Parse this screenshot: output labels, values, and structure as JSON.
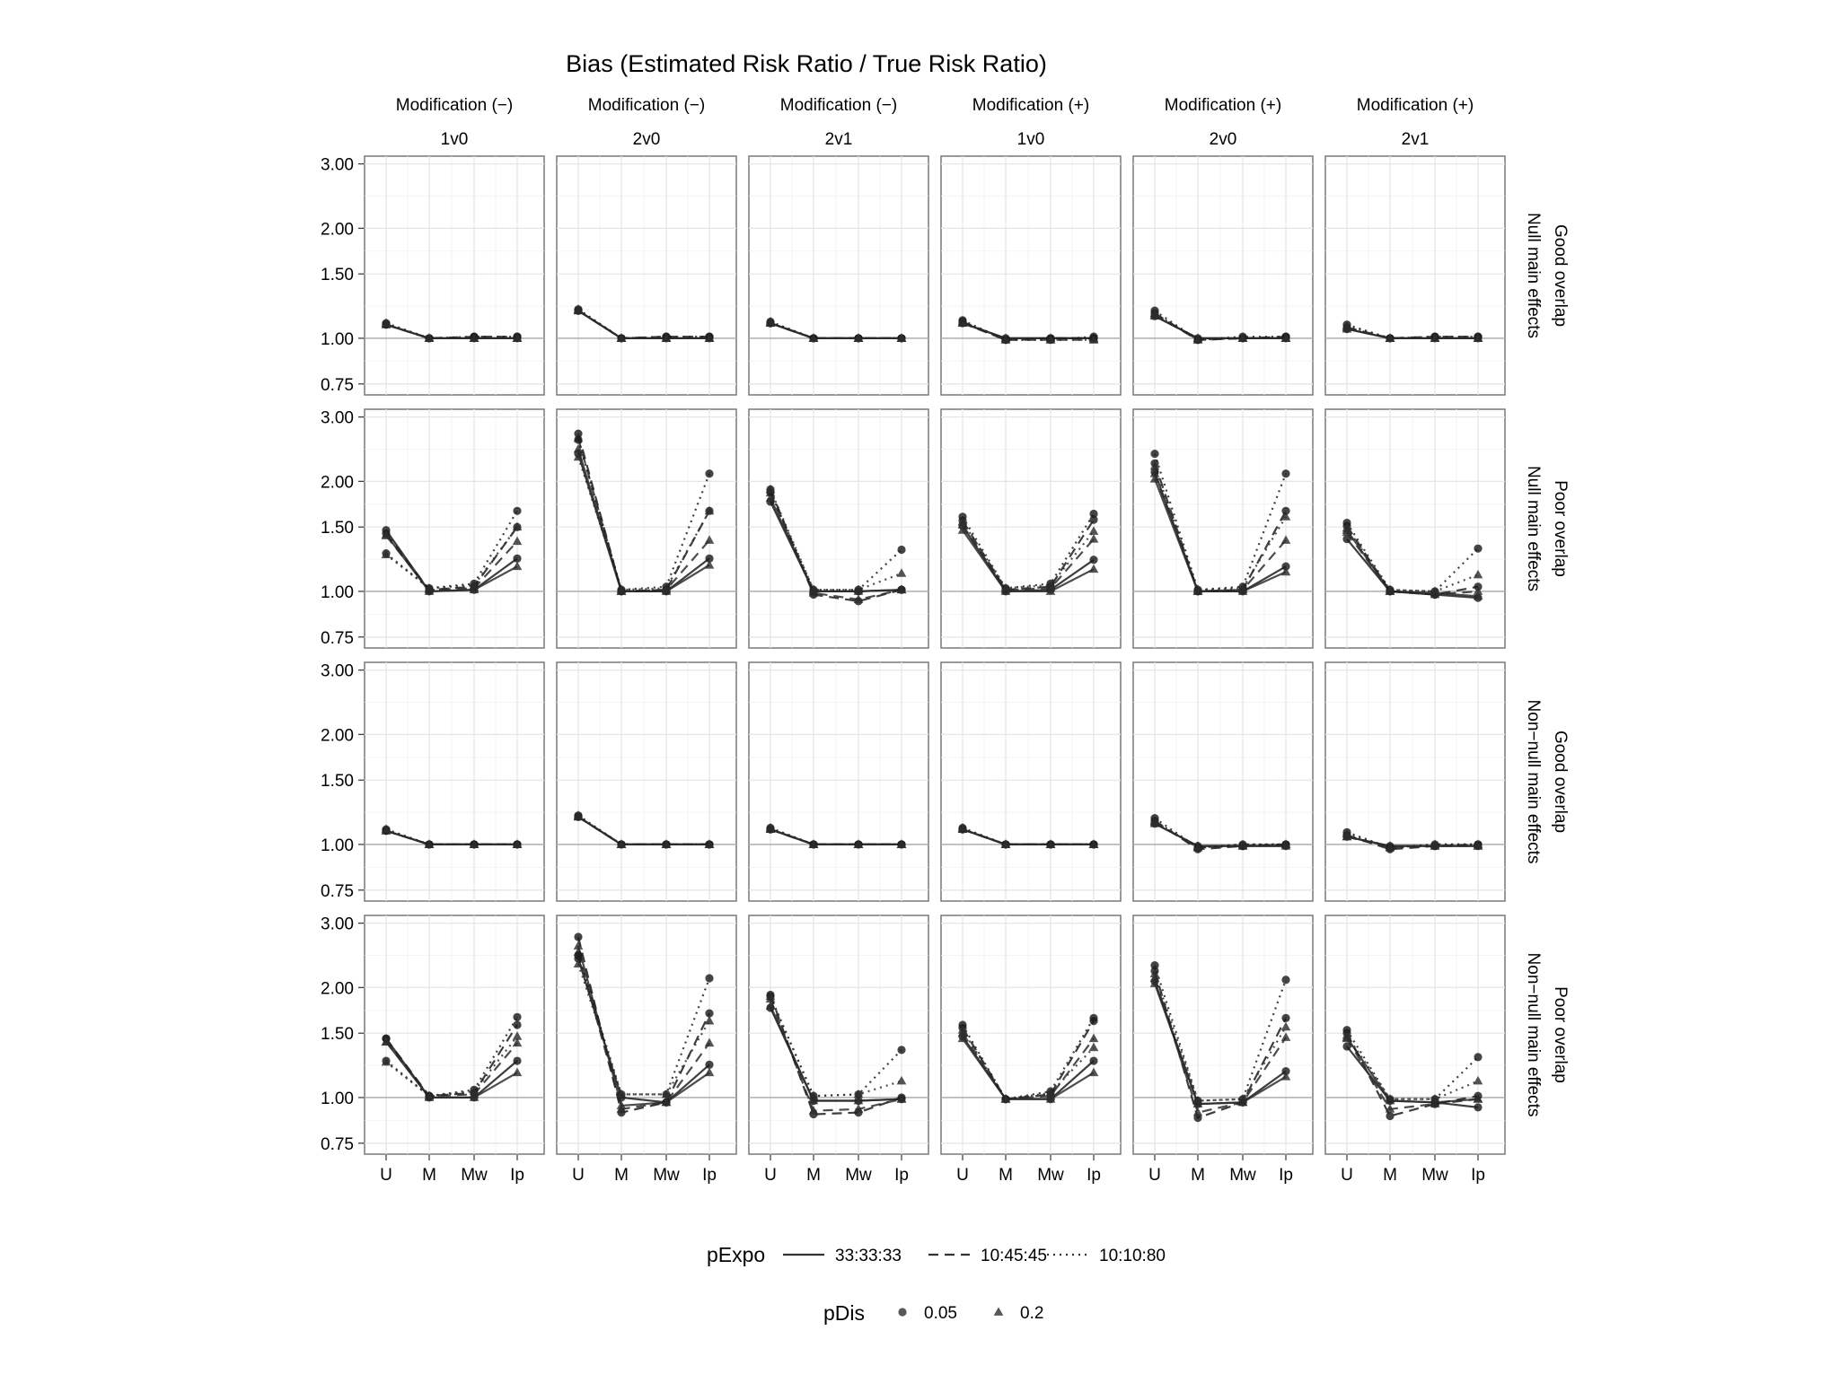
{
  "chart_data": {
    "type": "line",
    "title": "Bias (Estimated Risk Ratio / True Risk Ratio)",
    "x_categories": [
      "U",
      "M",
      "Mw",
      "Ip"
    ],
    "y_ticks": [
      0.75,
      1.0,
      1.5,
      2.0,
      3.0
    ],
    "y_tick_labels": [
      "0.75",
      "1.00",
      "1.50",
      "2.00",
      "3.00"
    ],
    "y_scale": "log",
    "ylim": [
      0.7,
      3.15
    ],
    "reference_line": 1.0,
    "column_facets": [
      {
        "line1": "Modification (−)",
        "line2": "1v0"
      },
      {
        "line1": "Modification (−)",
        "line2": "2v0"
      },
      {
        "line1": "Modification (−)",
        "line2": "2v1"
      },
      {
        "line1": "Modification (+)",
        "line2": "1v0"
      },
      {
        "line1": "Modification (+)",
        "line2": "2v0"
      },
      {
        "line1": "Modification (+)",
        "line2": "2v1"
      }
    ],
    "row_facets": [
      {
        "line1": "Good overlap",
        "line2": "Null main effects"
      },
      {
        "line1": "Poor overlap",
        "line2": "Null main effects"
      },
      {
        "line1": "Good overlap",
        "line2": "Non−null main effects"
      },
      {
        "line1": "Poor overlap",
        "line2": "Non−null main effects"
      }
    ],
    "legend": {
      "pExpo": {
        "title": "pExpo",
        "items": [
          {
            "label": "33:33:33",
            "dash": "solid"
          },
          {
            "label": "10:45:45",
            "dash": "dashed"
          },
          {
            "label": "10:10:80",
            "dash": "dotted"
          }
        ]
      },
      "pDis": {
        "title": "pDis",
        "items": [
          {
            "label": "0.05",
            "shape": "circle"
          },
          {
            "label": "0.2",
            "shape": "triangle"
          }
        ]
      }
    },
    "series_keys": [
      {
        "pExpo": "33:33:33",
        "pDis": "0.05"
      },
      {
        "pExpo": "33:33:33",
        "pDis": "0.2"
      },
      {
        "pExpo": "10:45:45",
        "pDis": "0.05"
      },
      {
        "pExpo": "10:45:45",
        "pDis": "0.2"
      },
      {
        "pExpo": "10:10:80",
        "pDis": "0.05"
      },
      {
        "pExpo": "10:10:80",
        "pDis": "0.2"
      }
    ],
    "panels": [
      [
        [
          [
            1.09,
            1.0,
            1.0,
            1.0
          ],
          [
            1.09,
            1.0,
            1.0,
            1.0
          ],
          [
            1.09,
            1.0,
            1.01,
            1.01
          ],
          [
            1.09,
            1.0,
            1.0,
            1.0
          ],
          [
            1.1,
            1.0,
            1.01,
            1.01
          ],
          [
            1.1,
            1.0,
            1.0,
            1.0
          ]
        ],
        [
          [
            1.19,
            1.0,
            1.0,
            1.0
          ],
          [
            1.19,
            1.0,
            1.0,
            1.0
          ],
          [
            1.19,
            1.0,
            1.01,
            1.01
          ],
          [
            1.19,
            1.0,
            1.0,
            1.0
          ],
          [
            1.2,
            1.0,
            1.01,
            1.01
          ],
          [
            1.2,
            1.0,
            1.0,
            1.0
          ]
        ],
        [
          [
            1.1,
            1.0,
            1.0,
            1.0
          ],
          [
            1.1,
            1.0,
            1.0,
            1.0
          ],
          [
            1.1,
            1.0,
            1.0,
            1.0
          ],
          [
            1.1,
            1.0,
            1.0,
            1.0
          ],
          [
            1.11,
            1.0,
            1.0,
            1.0
          ],
          [
            1.11,
            1.0,
            1.0,
            1.0
          ]
        ],
        [
          [
            1.1,
            1.0,
            1.0,
            1.0
          ],
          [
            1.1,
            1.0,
            1.0,
            1.0
          ],
          [
            1.11,
            0.99,
            1.0,
            1.0
          ],
          [
            1.1,
            0.99,
            0.99,
            0.99
          ],
          [
            1.12,
            0.99,
            0.99,
            1.01
          ],
          [
            1.11,
            0.99,
            0.99,
            0.99
          ]
        ],
        [
          [
            1.15,
            1.0,
            1.0,
            1.0
          ],
          [
            1.15,
            1.0,
            1.0,
            1.0
          ],
          [
            1.17,
            0.99,
            1.0,
            1.01
          ],
          [
            1.16,
            0.99,
            1.0,
            1.0
          ],
          [
            1.19,
            0.99,
            1.01,
            1.01
          ],
          [
            1.17,
            0.99,
            1.0,
            1.0
          ]
        ],
        [
          [
            1.06,
            1.0,
            1.0,
            1.0
          ],
          [
            1.06,
            1.0,
            1.0,
            1.0
          ],
          [
            1.07,
            1.0,
            1.01,
            1.01
          ],
          [
            1.07,
            1.0,
            1.0,
            1.0
          ],
          [
            1.09,
            1.0,
            1.01,
            1.01
          ],
          [
            1.08,
            1.0,
            1.0,
            1.0
          ]
        ]
      ],
      [
        [
          [
            1.47,
            1.0,
            1.01,
            1.23
          ],
          [
            1.43,
            1.0,
            1.01,
            1.17
          ],
          [
            1.44,
            1.01,
            1.03,
            1.5
          ],
          [
            1.42,
            1.01,
            1.02,
            1.37
          ],
          [
            1.27,
            1.02,
            1.05,
            1.66
          ],
          [
            1.26,
            1.02,
            1.04,
            1.5
          ]
        ],
        [
          [
            2.38,
            1.0,
            1.0,
            1.23
          ],
          [
            2.45,
            1.0,
            1.0,
            1.18
          ],
          [
            2.7,
            1.0,
            1.01,
            1.66
          ],
          [
            2.62,
            1.0,
            1.01,
            1.38
          ],
          [
            2.6,
            1.01,
            1.03,
            2.1
          ],
          [
            2.33,
            1.01,
            1.02,
            1.66
          ]
        ],
        [
          [
            1.76,
            1.0,
            1.0,
            1.01
          ],
          [
            1.8,
            1.0,
            1.0,
            1.01
          ],
          [
            1.9,
            0.98,
            0.94,
            1.01
          ],
          [
            1.86,
            0.99,
            0.95,
            1.01
          ],
          [
            1.87,
            1.01,
            1.01,
            1.3
          ],
          [
            1.9,
            1.01,
            1.01,
            1.12
          ]
        ],
        [
          [
            1.51,
            1.0,
            1.01,
            1.22
          ],
          [
            1.47,
            1.0,
            1.0,
            1.15
          ],
          [
            1.56,
            1.01,
            1.03,
            1.57
          ],
          [
            1.52,
            1.01,
            1.02,
            1.39
          ],
          [
            1.6,
            1.02,
            1.05,
            1.63
          ],
          [
            1.55,
            1.02,
            1.04,
            1.46
          ]
        ],
        [
          [
            2.12,
            1.0,
            1.0,
            1.17
          ],
          [
            2.03,
            1.0,
            1.0,
            1.13
          ],
          [
            2.24,
            1.0,
            1.01,
            1.66
          ],
          [
            2.1,
            1.0,
            1.01,
            1.38
          ],
          [
            2.38,
            1.01,
            1.03,
            2.1
          ],
          [
            2.2,
            1.01,
            1.02,
            1.6
          ]
        ],
        [
          [
            1.39,
            1.0,
            0.98,
            0.96
          ],
          [
            1.47,
            1.0,
            0.99,
            0.97
          ],
          [
            1.51,
            1.0,
            0.98,
            1.03
          ],
          [
            1.45,
            1.0,
            0.98,
            1.0
          ],
          [
            1.54,
            1.01,
            1.0,
            1.31
          ],
          [
            1.49,
            1.01,
            1.0,
            1.11
          ]
        ]
      ],
      [
        [
          [
            1.09,
            1.0,
            1.0,
            1.0
          ],
          [
            1.09,
            1.0,
            1.0,
            1.0
          ],
          [
            1.09,
            1.0,
            1.0,
            1.0
          ],
          [
            1.09,
            1.0,
            1.0,
            1.0
          ],
          [
            1.1,
            1.0,
            1.0,
            1.0
          ],
          [
            1.1,
            1.0,
            1.0,
            1.0
          ]
        ],
        [
          [
            1.19,
            1.0,
            1.0,
            1.0
          ],
          [
            1.19,
            1.0,
            1.0,
            1.0
          ],
          [
            1.19,
            1.0,
            1.0,
            1.0
          ],
          [
            1.19,
            1.0,
            1.0,
            1.0
          ],
          [
            1.2,
            1.0,
            1.0,
            1.0
          ],
          [
            1.2,
            1.0,
            1.0,
            1.0
          ]
        ],
        [
          [
            1.1,
            1.0,
            1.0,
            1.0
          ],
          [
            1.1,
            1.0,
            1.0,
            1.0
          ],
          [
            1.1,
            1.0,
            1.0,
            1.0
          ],
          [
            1.1,
            1.0,
            1.0,
            1.0
          ],
          [
            1.11,
            1.0,
            1.0,
            1.0
          ],
          [
            1.11,
            1.0,
            1.0,
            1.0
          ]
        ],
        [
          [
            1.1,
            1.0,
            1.0,
            1.0
          ],
          [
            1.1,
            1.0,
            1.0,
            1.0
          ],
          [
            1.1,
            1.0,
            1.0,
            1.0
          ],
          [
            1.1,
            1.0,
            1.0,
            1.0
          ],
          [
            1.11,
            1.0,
            1.0,
            1.0
          ],
          [
            1.11,
            1.0,
            1.0,
            1.0
          ]
        ],
        [
          [
            1.14,
            0.99,
            0.99,
            0.99
          ],
          [
            1.14,
            0.99,
            0.99,
            0.99
          ],
          [
            1.16,
            0.97,
            0.99,
            1.0
          ],
          [
            1.15,
            0.98,
            0.99,
            1.0
          ],
          [
            1.18,
            0.98,
            1.0,
            1.0
          ],
          [
            1.16,
            0.98,
            1.0,
            1.0
          ]
        ],
        [
          [
            1.05,
            0.99,
            0.99,
            0.99
          ],
          [
            1.05,
            0.99,
            0.99,
            0.99
          ],
          [
            1.06,
            0.97,
            0.99,
            1.0
          ],
          [
            1.05,
            0.98,
            0.99,
            0.99
          ],
          [
            1.08,
            0.98,
            1.0,
            1.0
          ],
          [
            1.07,
            0.98,
            1.0,
            1.0
          ]
        ]
      ],
      [
        [
          [
            1.45,
            1.0,
            1.0,
            1.26
          ],
          [
            1.42,
            1.0,
            1.0,
            1.17
          ],
          [
            1.45,
            1.01,
            1.03,
            1.58
          ],
          [
            1.42,
            1.01,
            1.02,
            1.41
          ],
          [
            1.26,
            1.01,
            1.05,
            1.66
          ],
          [
            1.25,
            1.01,
            1.04,
            1.47
          ]
        ],
        [
          [
            2.4,
            1.0,
            0.97,
            1.23
          ],
          [
            2.6,
            0.95,
            0.97,
            1.17
          ],
          [
            2.75,
            0.91,
            0.97,
            1.7
          ],
          [
            2.5,
            0.93,
            0.97,
            1.41
          ],
          [
            2.45,
            1.02,
            1.02,
            2.12
          ],
          [
            2.32,
            1.02,
            1.02,
            1.62
          ]
        ],
        [
          [
            1.76,
            0.98,
            0.98,
            0.99
          ],
          [
            1.78,
            0.98,
            0.98,
            0.99
          ],
          [
            1.91,
            0.9,
            0.91,
            1.0
          ],
          [
            1.86,
            0.92,
            0.93,
            0.99
          ],
          [
            1.89,
            1.01,
            1.02,
            1.35
          ],
          [
            1.89,
            1.01,
            1.02,
            1.11
          ]
        ],
        [
          [
            1.47,
            0.99,
            0.99,
            1.26
          ],
          [
            1.45,
            0.99,
            0.99,
            1.17
          ],
          [
            1.55,
            0.99,
            1.02,
            1.62
          ],
          [
            1.5,
            0.99,
            1.01,
            1.45
          ],
          [
            1.58,
            0.99,
            1.04,
            1.65
          ],
          [
            1.53,
            0.99,
            1.03,
            1.37
          ]
        ],
        [
          [
            2.08,
            0.96,
            0.97,
            1.18
          ],
          [
            2.05,
            0.96,
            0.97,
            1.14
          ],
          [
            2.22,
            0.88,
            0.97,
            1.65
          ],
          [
            2.12,
            0.91,
            0.97,
            1.46
          ],
          [
            2.3,
            0.98,
            0.99,
            2.1
          ],
          [
            2.18,
            0.98,
            0.99,
            1.56
          ]
        ],
        [
          [
            1.38,
            0.98,
            0.97,
            0.94
          ],
          [
            1.46,
            0.98,
            0.97,
            0.99
          ],
          [
            1.5,
            0.89,
            0.96,
            1.01
          ],
          [
            1.45,
            0.93,
            0.96,
            0.99
          ],
          [
            1.53,
            0.99,
            0.99,
            1.29
          ],
          [
            1.48,
            0.99,
            0.99,
            1.11
          ]
        ]
      ]
    ]
  }
}
